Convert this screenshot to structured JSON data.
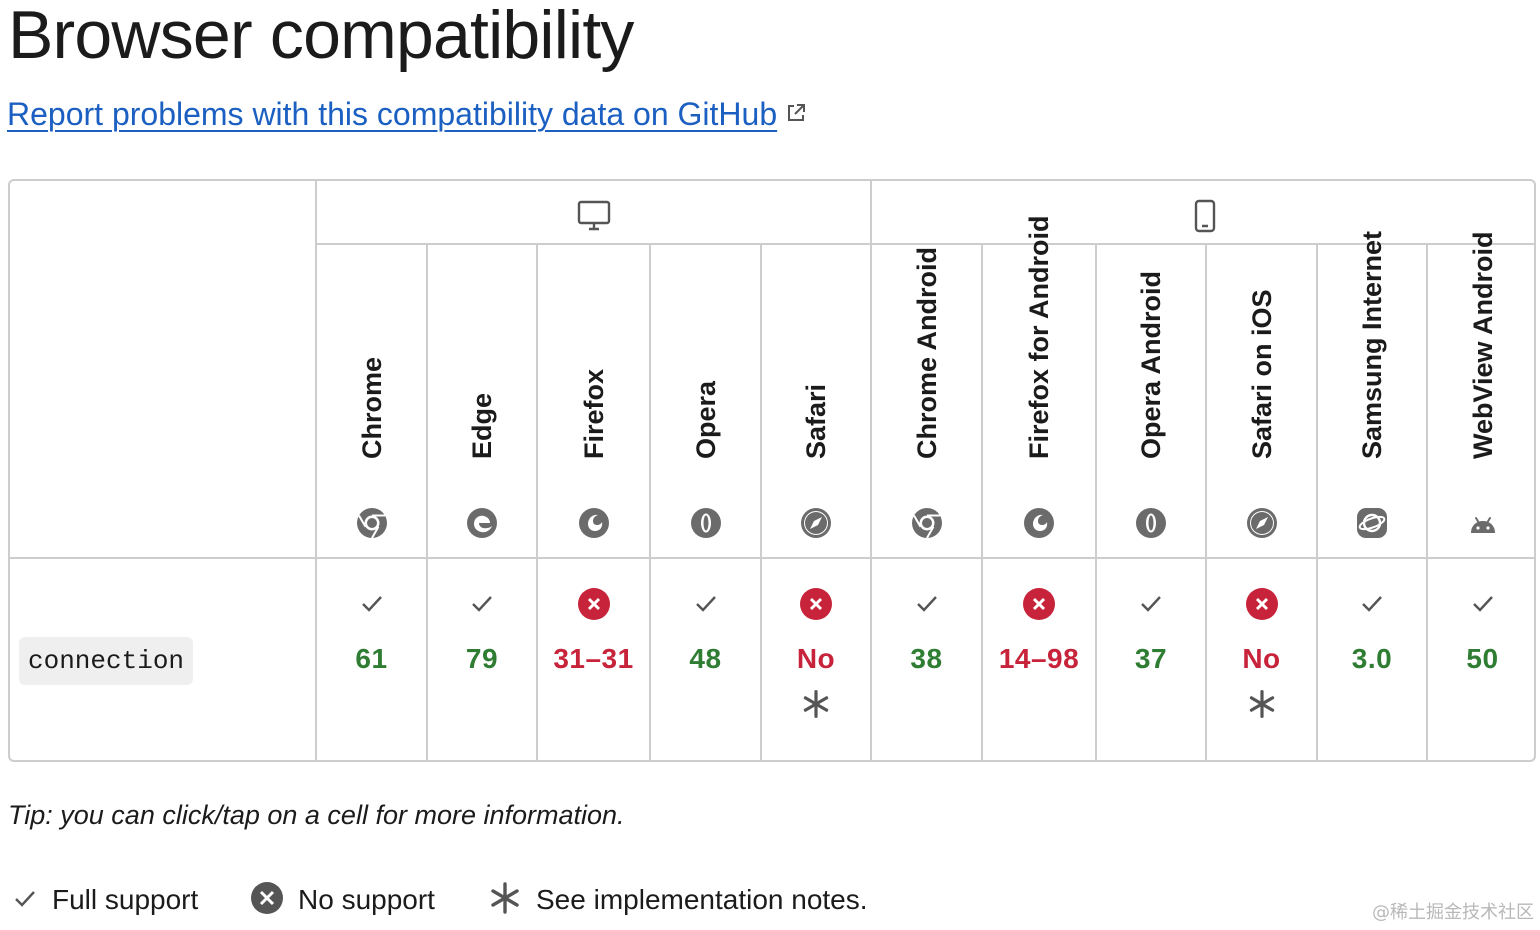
{
  "page": {
    "title": "Browser compatibility",
    "report_link": "Report problems with this compatibility data on GitHub"
  },
  "platforms": [
    {
      "name": "desktop",
      "icon": "desktop-icon"
    },
    {
      "name": "mobile",
      "icon": "mobile-icon"
    }
  ],
  "browsers": [
    {
      "name": "Chrome",
      "icon": "chrome-icon",
      "platform": "desktop",
      "support": "yes",
      "version": "61",
      "note": false
    },
    {
      "name": "Edge",
      "icon": "edge-icon",
      "platform": "desktop",
      "support": "yes",
      "version": "79",
      "note": false
    },
    {
      "name": "Firefox",
      "icon": "firefox-icon",
      "platform": "desktop",
      "support": "no",
      "version": "31–31",
      "note": false
    },
    {
      "name": "Opera",
      "icon": "opera-icon",
      "platform": "desktop",
      "support": "yes",
      "version": "48",
      "note": false
    },
    {
      "name": "Safari",
      "icon": "safari-icon",
      "platform": "desktop",
      "support": "no",
      "version": "No",
      "note": true
    },
    {
      "name": "Chrome Android",
      "icon": "chrome-icon",
      "platform": "mobile",
      "support": "yes",
      "version": "38",
      "note": false
    },
    {
      "name": "Firefox for Android",
      "icon": "firefox-icon",
      "platform": "mobile",
      "support": "no",
      "version": "14–98",
      "note": false
    },
    {
      "name": "Opera Android",
      "icon": "opera-icon",
      "platform": "mobile",
      "support": "yes",
      "version": "37",
      "note": false
    },
    {
      "name": "Safari on iOS",
      "icon": "safari-icon",
      "platform": "mobile",
      "support": "no",
      "version": "No",
      "note": true
    },
    {
      "name": "Samsung Internet",
      "icon": "samsung-internet-icon",
      "platform": "mobile",
      "support": "yes",
      "version": "3.0",
      "note": false
    },
    {
      "name": "WebView Android",
      "icon": "android-icon",
      "platform": "mobile",
      "support": "yes",
      "version": "50",
      "note": false
    }
  ],
  "feature": {
    "name": "connection"
  },
  "tip": "Tip: you can click/tap on a cell for more information.",
  "legend": [
    {
      "icon": "check-icon",
      "label": "Full support"
    },
    {
      "icon": "no-support-icon",
      "label": "No support"
    },
    {
      "icon": "asterisk-icon",
      "label": "See implementation notes."
    }
  ],
  "colors": {
    "full_support": "#2e7d32",
    "no_support": "#c7233a",
    "link": "#1a5fc1",
    "border": "#cdcdcd"
  },
  "watermark": "@稀土掘金技术社区"
}
